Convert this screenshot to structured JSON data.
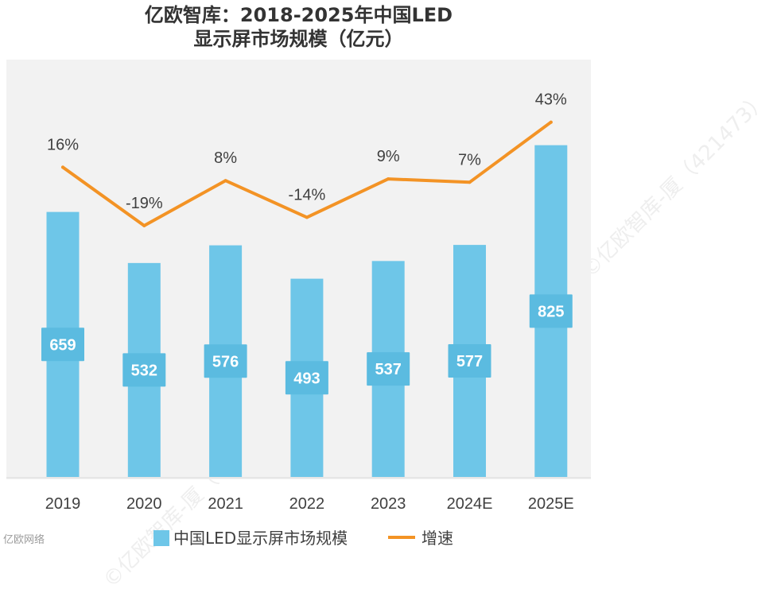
{
  "title_line1": "亿欧智库：2018-2025年中国LED",
  "title_line2": "显示屏市场规模（亿元）",
  "watermark": "©亿欧智库-厦（421473）",
  "brand": "亿欧网络",
  "colors": {
    "bar": "#6EC6E8",
    "line": "#F39325",
    "label_bg": "#5BBBE0",
    "label_text": "#ffffff",
    "text": "#404040"
  },
  "chart_data": {
    "type": "bar",
    "title": "亿欧智库：2018-2025年中国LED显示屏市场规模（亿元）",
    "categories": [
      "2019",
      "2020",
      "2021",
      "2022",
      "2023",
      "2024E",
      "2025E"
    ],
    "series": [
      {
        "name": "中国LED显示屏市场规模",
        "type": "bar",
        "values": [
          659,
          532,
          576,
          493,
          537,
          577,
          825
        ]
      },
      {
        "name": "增速",
        "type": "line",
        "values": [
          16,
          -19,
          8,
          -14,
          9,
          7,
          43
        ],
        "labels": [
          "16%",
          "-19%",
          "8%",
          "-14%",
          "9%",
          "7%",
          "43%"
        ]
      }
    ],
    "legend": {
      "position": "bottom",
      "items": [
        "中国LED显示屏市场规模",
        "增速"
      ]
    },
    "ylim_bar": [
      0,
      850
    ],
    "ylim_line": [
      -40,
      60
    ],
    "grid": false
  }
}
